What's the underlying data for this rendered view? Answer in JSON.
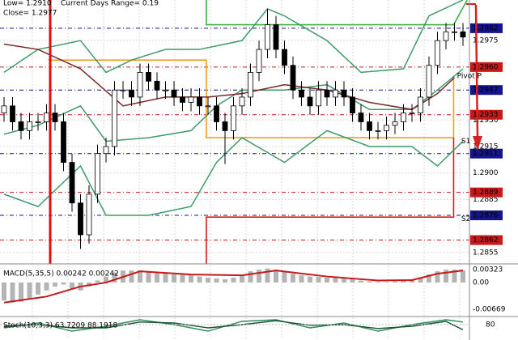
{
  "chart_data": [
    {
      "type": "candlestick",
      "header": [
        "Low= 1.2910",
        "Current Days Range= 0.19",
        "Close= 1.2977"
      ],
      "open": [
        1.2934,
        1.2938,
        1.2929,
        1.2924,
        1.2929,
        1.2929,
        1.2934,
        1.2929,
        1.2906,
        1.2883,
        1.2865,
        1.2888,
        1.2911,
        1.2915,
        1.2947,
        1.2947,
        1.2943,
        1.2957,
        1.2952,
        1.2947,
        1.2947,
        1.2943,
        1.294,
        1.2943,
        1.2938,
        1.2938,
        1.2929,
        1.2924,
        1.2938,
        1.2943,
        1.2957,
        1.297,
        1.2984,
        1.297,
        1.2961,
        1.2947,
        1.2943,
        1.2938,
        1.2947,
        1.2943,
        1.2947,
        1.2943,
        1.2934,
        1.2929,
        1.2924,
        1.2924,
        1.2927,
        1.2929,
        1.2934,
        1.2934,
        1.2943,
        1.2961,
        1.2975,
        1.298,
        1.298
      ],
      "high": [
        1.2943,
        1.2943,
        1.2934,
        1.2934,
        1.2934,
        1.2939,
        1.2939,
        1.2934,
        1.2911,
        1.2888,
        1.2893,
        1.2916,
        1.292,
        1.2952,
        1.2952,
        1.2952,
        1.2962,
        1.2962,
        1.2957,
        1.2952,
        1.2952,
        1.2948,
        1.2948,
        1.2948,
        1.2943,
        1.2943,
        1.2934,
        1.2943,
        1.2948,
        1.2962,
        1.2975,
        1.2993,
        1.2989,
        1.2975,
        1.2966,
        1.2952,
        1.2948,
        1.2952,
        1.2952,
        1.2952,
        1.2952,
        1.2948,
        1.2939,
        1.2934,
        1.2929,
        1.2932,
        1.2934,
        1.2939,
        1.2939,
        1.2948,
        1.2966,
        1.298,
        1.2985,
        1.2985,
        1.2985
      ],
      "low": [
        1.2929,
        1.2924,
        1.2919,
        1.2919,
        1.2924,
        1.2924,
        1.2924,
        1.2901,
        1.2878,
        1.2857,
        1.286,
        1.2883,
        1.2906,
        1.291,
        1.2942,
        1.2938,
        1.2938,
        1.2947,
        1.2942,
        1.2942,
        1.2938,
        1.2935,
        1.2935,
        1.2933,
        1.2933,
        1.2924,
        1.2905,
        1.2919,
        1.2933,
        1.2938,
        1.2952,
        1.2965,
        1.2965,
        1.2956,
        1.2942,
        1.2938,
        1.2933,
        1.2933,
        1.2938,
        1.2938,
        1.2938,
        1.2929,
        1.2924,
        1.2919,
        1.2919,
        1.2919,
        1.2922,
        1.2924,
        1.2929,
        1.2929,
        1.2938,
        1.2956,
        1.297,
        1.2975,
        1.2972
      ],
      "close": [
        1.2938,
        1.2929,
        1.2924,
        1.2929,
        1.2929,
        1.2934,
        1.2929,
        1.2906,
        1.2883,
        1.2865,
        1.2888,
        1.2911,
        1.2915,
        1.2947,
        1.2947,
        1.2943,
        1.2957,
        1.2952,
        1.2947,
        1.2947,
        1.2943,
        1.294,
        1.2943,
        1.2938,
        1.2938,
        1.2929,
        1.2924,
        1.2938,
        1.2943,
        1.2957,
        1.297,
        1.2984,
        1.297,
        1.2961,
        1.2947,
        1.2943,
        1.2938,
        1.2947,
        1.2943,
        1.2947,
        1.2943,
        1.2934,
        1.2929,
        1.2924,
        1.2924,
        1.2927,
        1.2929,
        1.2934,
        1.2934,
        1.2943,
        1.2961,
        1.2975,
        1.298,
        1.298,
        1.2977
      ],
      "overlays": [
        {
          "color": "#3f9a6a",
          "x": [
            0,
            4,
            9,
            12,
            15,
            19,
            23,
            28,
            31,
            33,
            38,
            42,
            47,
            50,
            54
          ],
          "values": [
            1.2957,
            1.297,
            1.2975,
            1.2957,
            1.2964,
            1.297,
            1.297,
            1.2975,
            1.2993,
            1.2989,
            1.2975,
            1.2957,
            1.2959,
            1.2989,
            1.2998
          ]
        },
        {
          "color": "#3f9a6a",
          "x": [
            0,
            4,
            9,
            12,
            17,
            22,
            25,
            28,
            33,
            38,
            43,
            48,
            51,
            54
          ],
          "values": [
            1.2888,
            1.2881,
            1.2904,
            1.2876,
            1.2876,
            1.2881,
            1.2906,
            1.292,
            1.2906,
            1.2924,
            1.2915,
            1.2915,
            1.2904,
            1.2918
          ]
        },
        {
          "color": "#3f9a6a",
          "x": [
            0,
            4,
            9,
            12,
            17,
            22,
            25,
            28,
            33,
            38,
            43,
            48,
            51,
            54
          ],
          "values": [
            1.2922,
            1.2927,
            1.2938,
            1.2918,
            1.292,
            1.2924,
            1.2938,
            1.2947,
            1.2947,
            1.295,
            1.2936,
            1.2936,
            1.2947,
            1.2959
          ]
        },
        {
          "color": "#7a2a2a",
          "x": [
            0,
            4,
            9,
            14,
            19,
            24,
            28,
            33,
            38,
            43,
            48,
            51,
            53
          ],
          "values": [
            1.2973,
            1.297,
            1.2959,
            1.2938,
            1.2943,
            1.2943,
            1.2945,
            1.295,
            1.2947,
            1.294,
            1.2936,
            1.2945,
            1.2954
          ]
        }
      ],
      "steps": [
        {
          "color": "#f0a020",
          "x": [
            5.2,
            23.8,
            23.8,
            52.9,
            52.9
          ],
          "values": [
            1.2964,
            1.2964,
            1.292,
            1.292,
            1.2955
          ]
        },
        {
          "color": "#3cb043",
          "x": [
            23.8,
            23.8,
            52.9,
            54.5
          ],
          "values": [
            1.2998,
            1.2984,
            1.2984,
            1.2998
          ]
        },
        {
          "color": "#d42020",
          "x": [
            23.8,
            23.8,
            52.9,
            52.9
          ],
          "values": [
            1.28485,
            1.2875,
            1.2875,
            1.292
          ]
        }
      ],
      "annotations": [
        {
          "text": "Pivot P",
          "x": 53.3,
          "y": 1.2955
        },
        {
          "text": "S1",
          "x": 53.8,
          "y": 1.2918
        },
        {
          "text": "S2",
          "x": 53.8,
          "y": 1.2874
        }
      ],
      "levels": [
        {
          "value": 1.2982,
          "color": "#14148c"
        },
        {
          "value": 1.296,
          "label": "1.2960",
          "color": "#c41a1a"
        },
        {
          "value": 1.2947,
          "color": "#14148c"
        },
        {
          "value": 1.2933,
          "color": "#c41a1a"
        },
        {
          "value": 1.2911,
          "color": "#14148c"
        },
        {
          "value": 1.2889,
          "color": "#c41a1a"
        },
        {
          "value": 1.2876,
          "color": "#14148c"
        },
        {
          "value": 1.2862,
          "color": "#c41a1a"
        }
      ],
      "ylim": [
        1.28485,
        1.2998
      ],
      "yticks": [
        1.2975,
        {
          "value": 1.293,
          "label": "1.2930"
        },
        1.2915,
        {
          "value": 1.29,
          "label": "1.2900"
        },
        1.2885,
        1.2855
      ],
      "grid": true
    },
    {
      "type": "bar",
      "title": "MACD(5,35,5) 0.00242 0.00242",
      "values": [
        -0.0045,
        -0.005,
        -0.0048,
        -0.004,
        -0.003,
        -0.002,
        -0.001,
        -0.0005,
        -0.0015,
        -0.002,
        -0.001,
        0.0005,
        0.0015,
        0.0025,
        0.003,
        0.003,
        0.003,
        0.0028,
        0.0025,
        0.0022,
        0.002,
        0.002,
        0.0018,
        0.0015,
        0.0012,
        0.001,
        0.0008,
        0.0012,
        0.002,
        0.0028,
        0.0032,
        0.0035,
        0.0032,
        0.0028,
        0.0022,
        0.0018,
        0.0015,
        0.0014,
        0.0012,
        0.0012,
        0.001,
        0.0008,
        0.0005,
        0.0003,
        0.0002,
        0.0002,
        0.0003,
        0.0005,
        0.0008,
        0.0012,
        0.002,
        0.0028,
        0.0032,
        0.0032,
        0.003
      ],
      "color": "#b4b4b4",
      "signal": {
        "color": "#c41a1a",
        "x": [
          0,
          5,
          9,
          12,
          16,
          22,
          28,
          32,
          38,
          44,
          48,
          51,
          54
        ],
        "values": [
          -0.005,
          -0.0035,
          -0.001,
          0.0,
          0.0028,
          0.002,
          0.0018,
          0.003,
          0.0015,
          0.0005,
          0.0006,
          0.0022,
          0.003
        ]
      },
      "ylim": [
        -0.00828,
        0.00444
      ],
      "yticks": [
        0.00323,
        {
          "value": 0,
          "label": "0.00"
        },
        -0.00669
      ]
    },
    {
      "type": "line",
      "title": "Stoch(10,3,3) 63.7209 88.1918",
      "series": [
        {
          "color": "#2e8b57",
          "x": [
            0,
            4,
            8,
            12,
            16,
            20,
            24,
            28,
            32,
            36,
            40,
            44,
            48,
            52,
            54
          ],
          "values": [
            70,
            85,
            60,
            75,
            95,
            80,
            60,
            90,
            95,
            70,
            85,
            60,
            80,
            95,
            88
          ]
        },
        {
          "color": "#1d4f36",
          "x": [
            0,
            4,
            8,
            12,
            16,
            20,
            24,
            28,
            32,
            36,
            40,
            44,
            48,
            52,
            54
          ],
          "values": [
            75,
            80,
            70,
            70,
            88,
            85,
            70,
            80,
            92,
            78,
            80,
            68,
            75,
            90,
            64
          ]
        }
      ],
      "ylim": [
        0,
        100
      ],
      "yticks": [
        80
      ]
    }
  ]
}
